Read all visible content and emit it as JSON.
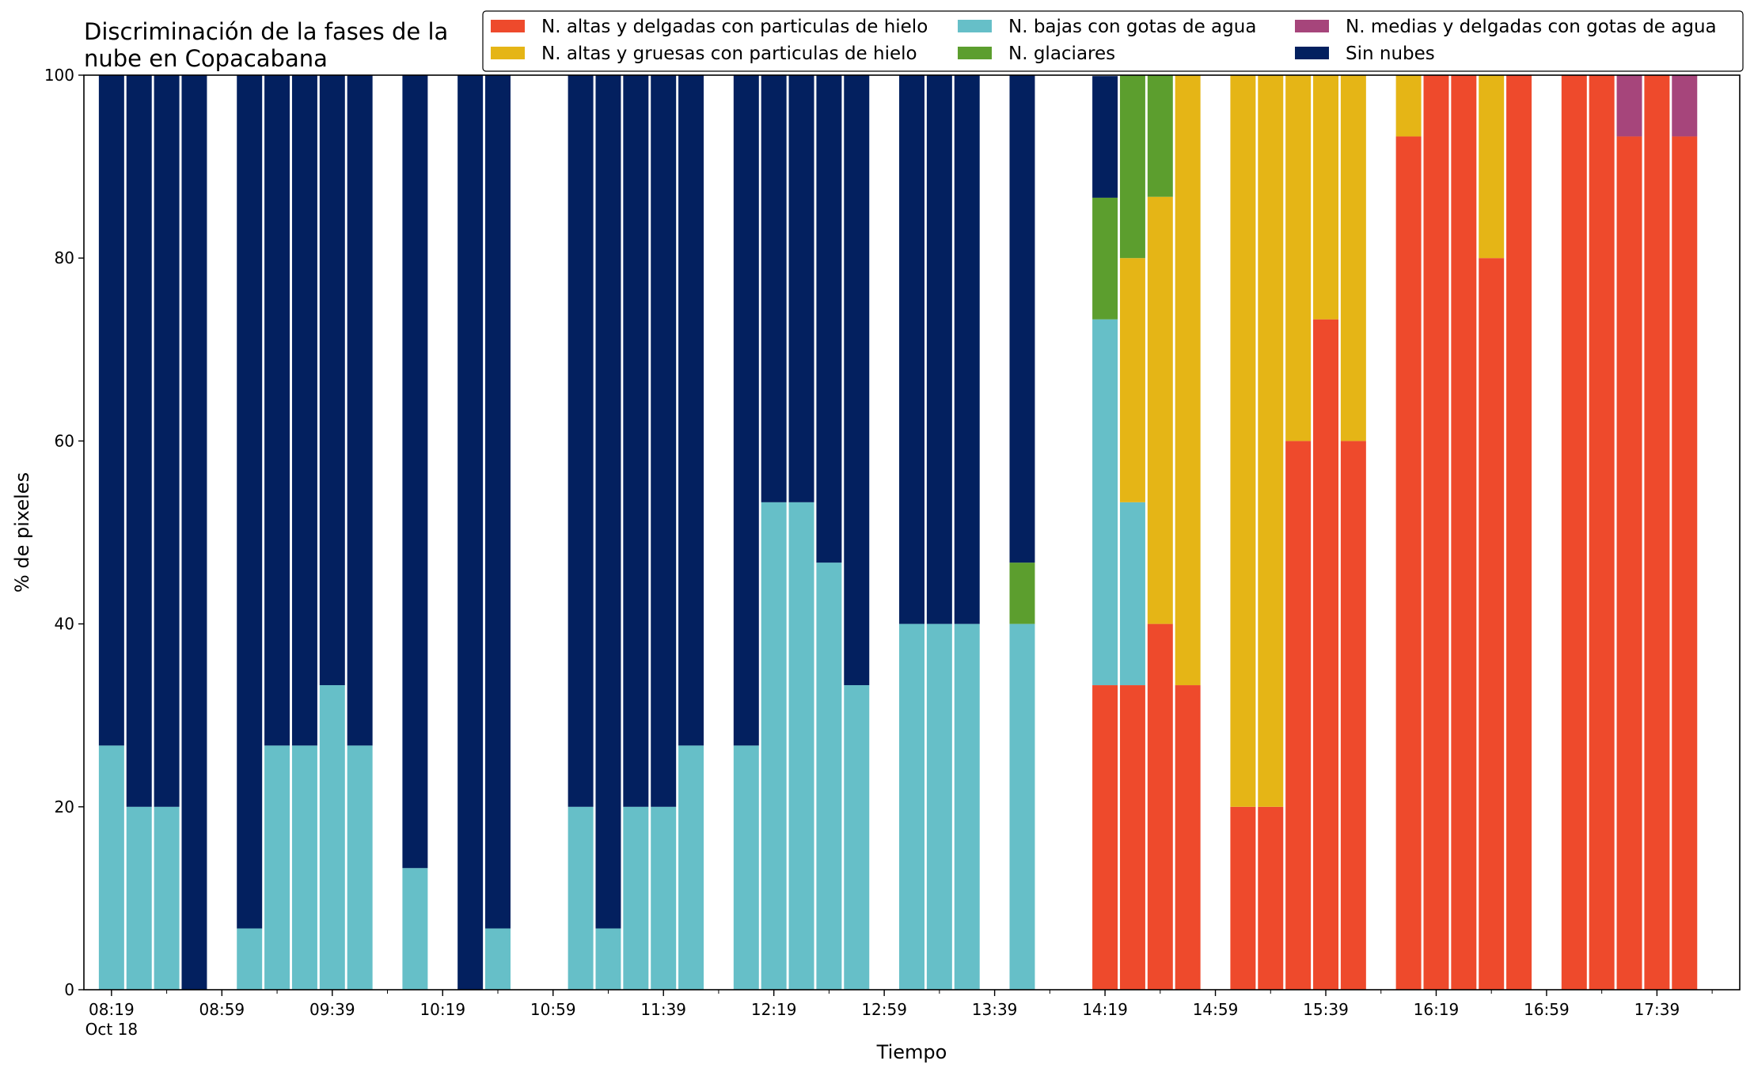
{
  "chart_data": {
    "type": "bar",
    "stacked": true,
    "title_lines": [
      "Discriminación de la fases de la",
      "nube en Copacabana"
    ],
    "xlabel": "Tiempo",
    "ylabel": "% de pixeles",
    "ylim": [
      0,
      100
    ],
    "yticks": [
      0,
      20,
      40,
      60,
      80,
      100
    ],
    "xlim": [
      "08:09",
      "18:09"
    ],
    "date_label": "Oct 18",
    "x_tick_labels": [
      "08:19",
      "08:59",
      "09:39",
      "10:19",
      "10:59",
      "11:39",
      "12:19",
      "12:59",
      "13:39",
      "14:19",
      "14:59",
      "15:39",
      "16:19",
      "16:59",
      "17:39"
    ],
    "grid": false,
    "legend_position": "top-right",
    "series": [
      {
        "name": "N. altas y delgadas con particulas de hielo",
        "color": "#ee4a2c"
      },
      {
        "name": "N. altas y gruesas con particulas de hielo",
        "color": "#e5b516"
      },
      {
        "name": "N. bajas con gotas de agua",
        "color": "#66bfc8"
      },
      {
        "name": "N. glaciares",
        "color": "#5c9e2e"
      },
      {
        "name": "N. medias y delgadas con gotas de agua",
        "color": "#a6457b"
      },
      {
        "name": "Sin nubes",
        "color": "#03205f"
      }
    ],
    "stack_order": [
      "N. altas y delgadas con particulas de hielo",
      "N. bajas con gotas de agua",
      "N. altas y gruesas con particulas de hielo",
      "N. glaciares",
      "N. medias y delgadas con gotas de agua",
      "Sin nubes"
    ],
    "bars": [
      {
        "x": "08:19",
        "values": {
          "N. bajas con gotas de agua": 26.7,
          "Sin nubes": 73.3
        }
      },
      {
        "x": "08:29",
        "values": {
          "N. bajas con gotas de agua": 20,
          "Sin nubes": 80
        }
      },
      {
        "x": "08:39",
        "values": {
          "N. bajas con gotas de agua": 20,
          "Sin nubes": 80
        }
      },
      {
        "x": "08:49",
        "values": {
          "Sin nubes": 100
        }
      },
      {
        "x": "09:09",
        "values": {
          "N. bajas con gotas de agua": 6.7,
          "Sin nubes": 93.3
        }
      },
      {
        "x": "09:19",
        "values": {
          "N. bajas con gotas de agua": 26.7,
          "Sin nubes": 73.3
        }
      },
      {
        "x": "09:29",
        "values": {
          "N. bajas con gotas de agua": 26.7,
          "Sin nubes": 73.3
        }
      },
      {
        "x": "09:39",
        "values": {
          "N. bajas con gotas de agua": 33.3,
          "Sin nubes": 66.7
        }
      },
      {
        "x": "09:49",
        "values": {
          "N. bajas con gotas de agua": 26.7,
          "Sin nubes": 73.3
        }
      },
      {
        "x": "10:09",
        "values": {
          "N. bajas con gotas de agua": 13.3,
          "Sin nubes": 86.7
        }
      },
      {
        "x": "10:29",
        "values": {
          "Sin nubes": 100
        }
      },
      {
        "x": "10:39",
        "values": {
          "N. bajas con gotas de agua": 6.7,
          "Sin nubes": 93.3
        }
      },
      {
        "x": "11:09",
        "values": {
          "N. bajas con gotas de agua": 20,
          "Sin nubes": 80
        }
      },
      {
        "x": "11:19",
        "values": {
          "N. bajas con gotas de agua": 6.7,
          "Sin nubes": 93.3
        }
      },
      {
        "x": "11:29",
        "values": {
          "N. bajas con gotas de agua": 20,
          "Sin nubes": 80
        }
      },
      {
        "x": "11:39",
        "values": {
          "N. bajas con gotas de agua": 20,
          "Sin nubes": 80
        }
      },
      {
        "x": "11:49",
        "values": {
          "N. bajas con gotas de agua": 26.7,
          "Sin nubes": 73.3
        }
      },
      {
        "x": "12:09",
        "values": {
          "N. bajas con gotas de agua": 26.7,
          "Sin nubes": 73.3
        }
      },
      {
        "x": "12:19",
        "values": {
          "N. bajas con gotas de agua": 53.3,
          "Sin nubes": 46.7
        }
      },
      {
        "x": "12:29",
        "values": {
          "N. bajas con gotas de agua": 53.3,
          "Sin nubes": 46.7
        }
      },
      {
        "x": "12:39",
        "values": {
          "N. bajas con gotas de agua": 46.7,
          "Sin nubes": 53.3
        }
      },
      {
        "x": "12:49",
        "values": {
          "N. bajas con gotas de agua": 33.3,
          "Sin nubes": 66.7
        }
      },
      {
        "x": "13:09",
        "values": {
          "N. bajas con gotas de agua": 40,
          "Sin nubes": 60
        }
      },
      {
        "x": "13:19",
        "values": {
          "N. bajas con gotas de agua": 40,
          "Sin nubes": 60
        }
      },
      {
        "x": "13:29",
        "values": {
          "N. bajas con gotas de agua": 40,
          "Sin nubes": 60
        }
      },
      {
        "x": "13:49",
        "values": {
          "N. bajas con gotas de agua": 40,
          "N. glaciares": 6.7,
          "Sin nubes": 53.3
        }
      },
      {
        "x": "14:19",
        "values": {
          "N. altas y delgadas con particulas de hielo": 33.3,
          "N. bajas con gotas de agua": 40,
          "N. glaciares": 13.3,
          "Sin nubes": 13.3
        }
      },
      {
        "x": "14:29",
        "values": {
          "N. altas y delgadas con particulas de hielo": 33.3,
          "N. altas y gruesas con particulas de hielo": 26.7,
          "N. bajas con gotas de agua": 20,
          "N. glaciares": 20
        }
      },
      {
        "x": "14:39",
        "values": {
          "N. altas y delgadas con particulas de hielo": 40,
          "N. altas y gruesas con particulas de hielo": 46.7,
          "N. glaciares": 13.3
        }
      },
      {
        "x": "14:49",
        "values": {
          "N. altas y delgadas con particulas de hielo": 33.3,
          "N. altas y gruesas con particulas de hielo": 66.7
        }
      },
      {
        "x": "15:09",
        "values": {
          "N. altas y delgadas con particulas de hielo": 20,
          "N. altas y gruesas con particulas de hielo": 80
        }
      },
      {
        "x": "15:19",
        "values": {
          "N. altas y delgadas con particulas de hielo": 20,
          "N. altas y gruesas con particulas de hielo": 80
        }
      },
      {
        "x": "15:29",
        "values": {
          "N. altas y delgadas con particulas de hielo": 60,
          "N. altas y gruesas con particulas de hielo": 40
        }
      },
      {
        "x": "15:39",
        "values": {
          "N. altas y delgadas con particulas de hielo": 73.3,
          "N. altas y gruesas con particulas de hielo": 26.7
        }
      },
      {
        "x": "15:49",
        "values": {
          "N. altas y delgadas con particulas de hielo": 60,
          "N. altas y gruesas con particulas de hielo": 40
        }
      },
      {
        "x": "16:09",
        "values": {
          "N. altas y delgadas con particulas de hielo": 93.3,
          "N. altas y gruesas con particulas de hielo": 6.7
        }
      },
      {
        "x": "16:19",
        "values": {
          "N. altas y delgadas con particulas de hielo": 100
        }
      },
      {
        "x": "16:29",
        "values": {
          "N. altas y delgadas con particulas de hielo": 100
        }
      },
      {
        "x": "16:39",
        "values": {
          "N. altas y delgadas con particulas de hielo": 80,
          "N. altas y gruesas con particulas de hielo": 20
        }
      },
      {
        "x": "16:49",
        "values": {
          "N. altas y delgadas con particulas de hielo": 100
        }
      },
      {
        "x": "17:09",
        "values": {
          "N. altas y delgadas con particulas de hielo": 100
        }
      },
      {
        "x": "17:19",
        "values": {
          "N. altas y delgadas con particulas de hielo": 100
        }
      },
      {
        "x": "17:29",
        "values": {
          "N. altas y delgadas con particulas de hielo": 93.3,
          "N. medias y delgadas con gotas de agua": 6.7
        }
      },
      {
        "x": "17:39",
        "values": {
          "N. altas y delgadas con particulas de hielo": 100
        }
      },
      {
        "x": "17:49",
        "values": {
          "N. altas y delgadas con particulas de hielo": 93.3,
          "N. medias y delgadas con gotas de agua": 6.7
        }
      }
    ]
  }
}
